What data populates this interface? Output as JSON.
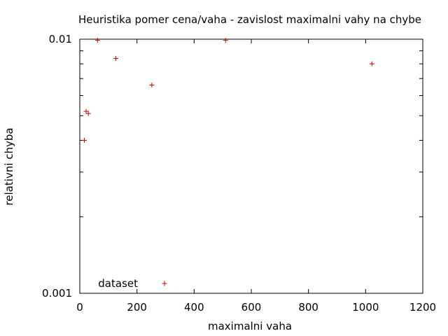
{
  "chart_data": {
    "type": "scatter",
    "title": "Heuristika pomer cena/vaha - zavislost maximalni vahy na chybe",
    "xlabel": "maximalni vaha",
    "ylabel": "relativni chyba",
    "xlim": [
      0,
      1200
    ],
    "ylim": [
      0.001,
      0.01
    ],
    "yscale": "log",
    "x_ticks": [
      0,
      200,
      400,
      600,
      800,
      1000,
      1200
    ],
    "x_tick_labels": [
      "0",
      "200",
      "400",
      "600",
      "800",
      "1000",
      "1200"
    ],
    "y_ticks": [
      0.001,
      0.01
    ],
    "y_tick_labels": [
      "0.001",
      "0.01"
    ],
    "grid": false,
    "legend_position": "bottom-left",
    "series": [
      {
        "name": "dataset",
        "marker": "plus",
        "color": "#cc0000",
        "points": [
          {
            "x": 16,
            "y": 0.004
          },
          {
            "x": 22,
            "y": 0.0052
          },
          {
            "x": 30,
            "y": 0.0051
          },
          {
            "x": 62,
            "y": 0.0099
          },
          {
            "x": 126,
            "y": 0.0084
          },
          {
            "x": 252,
            "y": 0.0066
          },
          {
            "x": 510,
            "y": 0.0099
          },
          {
            "x": 1022,
            "y": 0.008
          }
        ]
      }
    ]
  }
}
